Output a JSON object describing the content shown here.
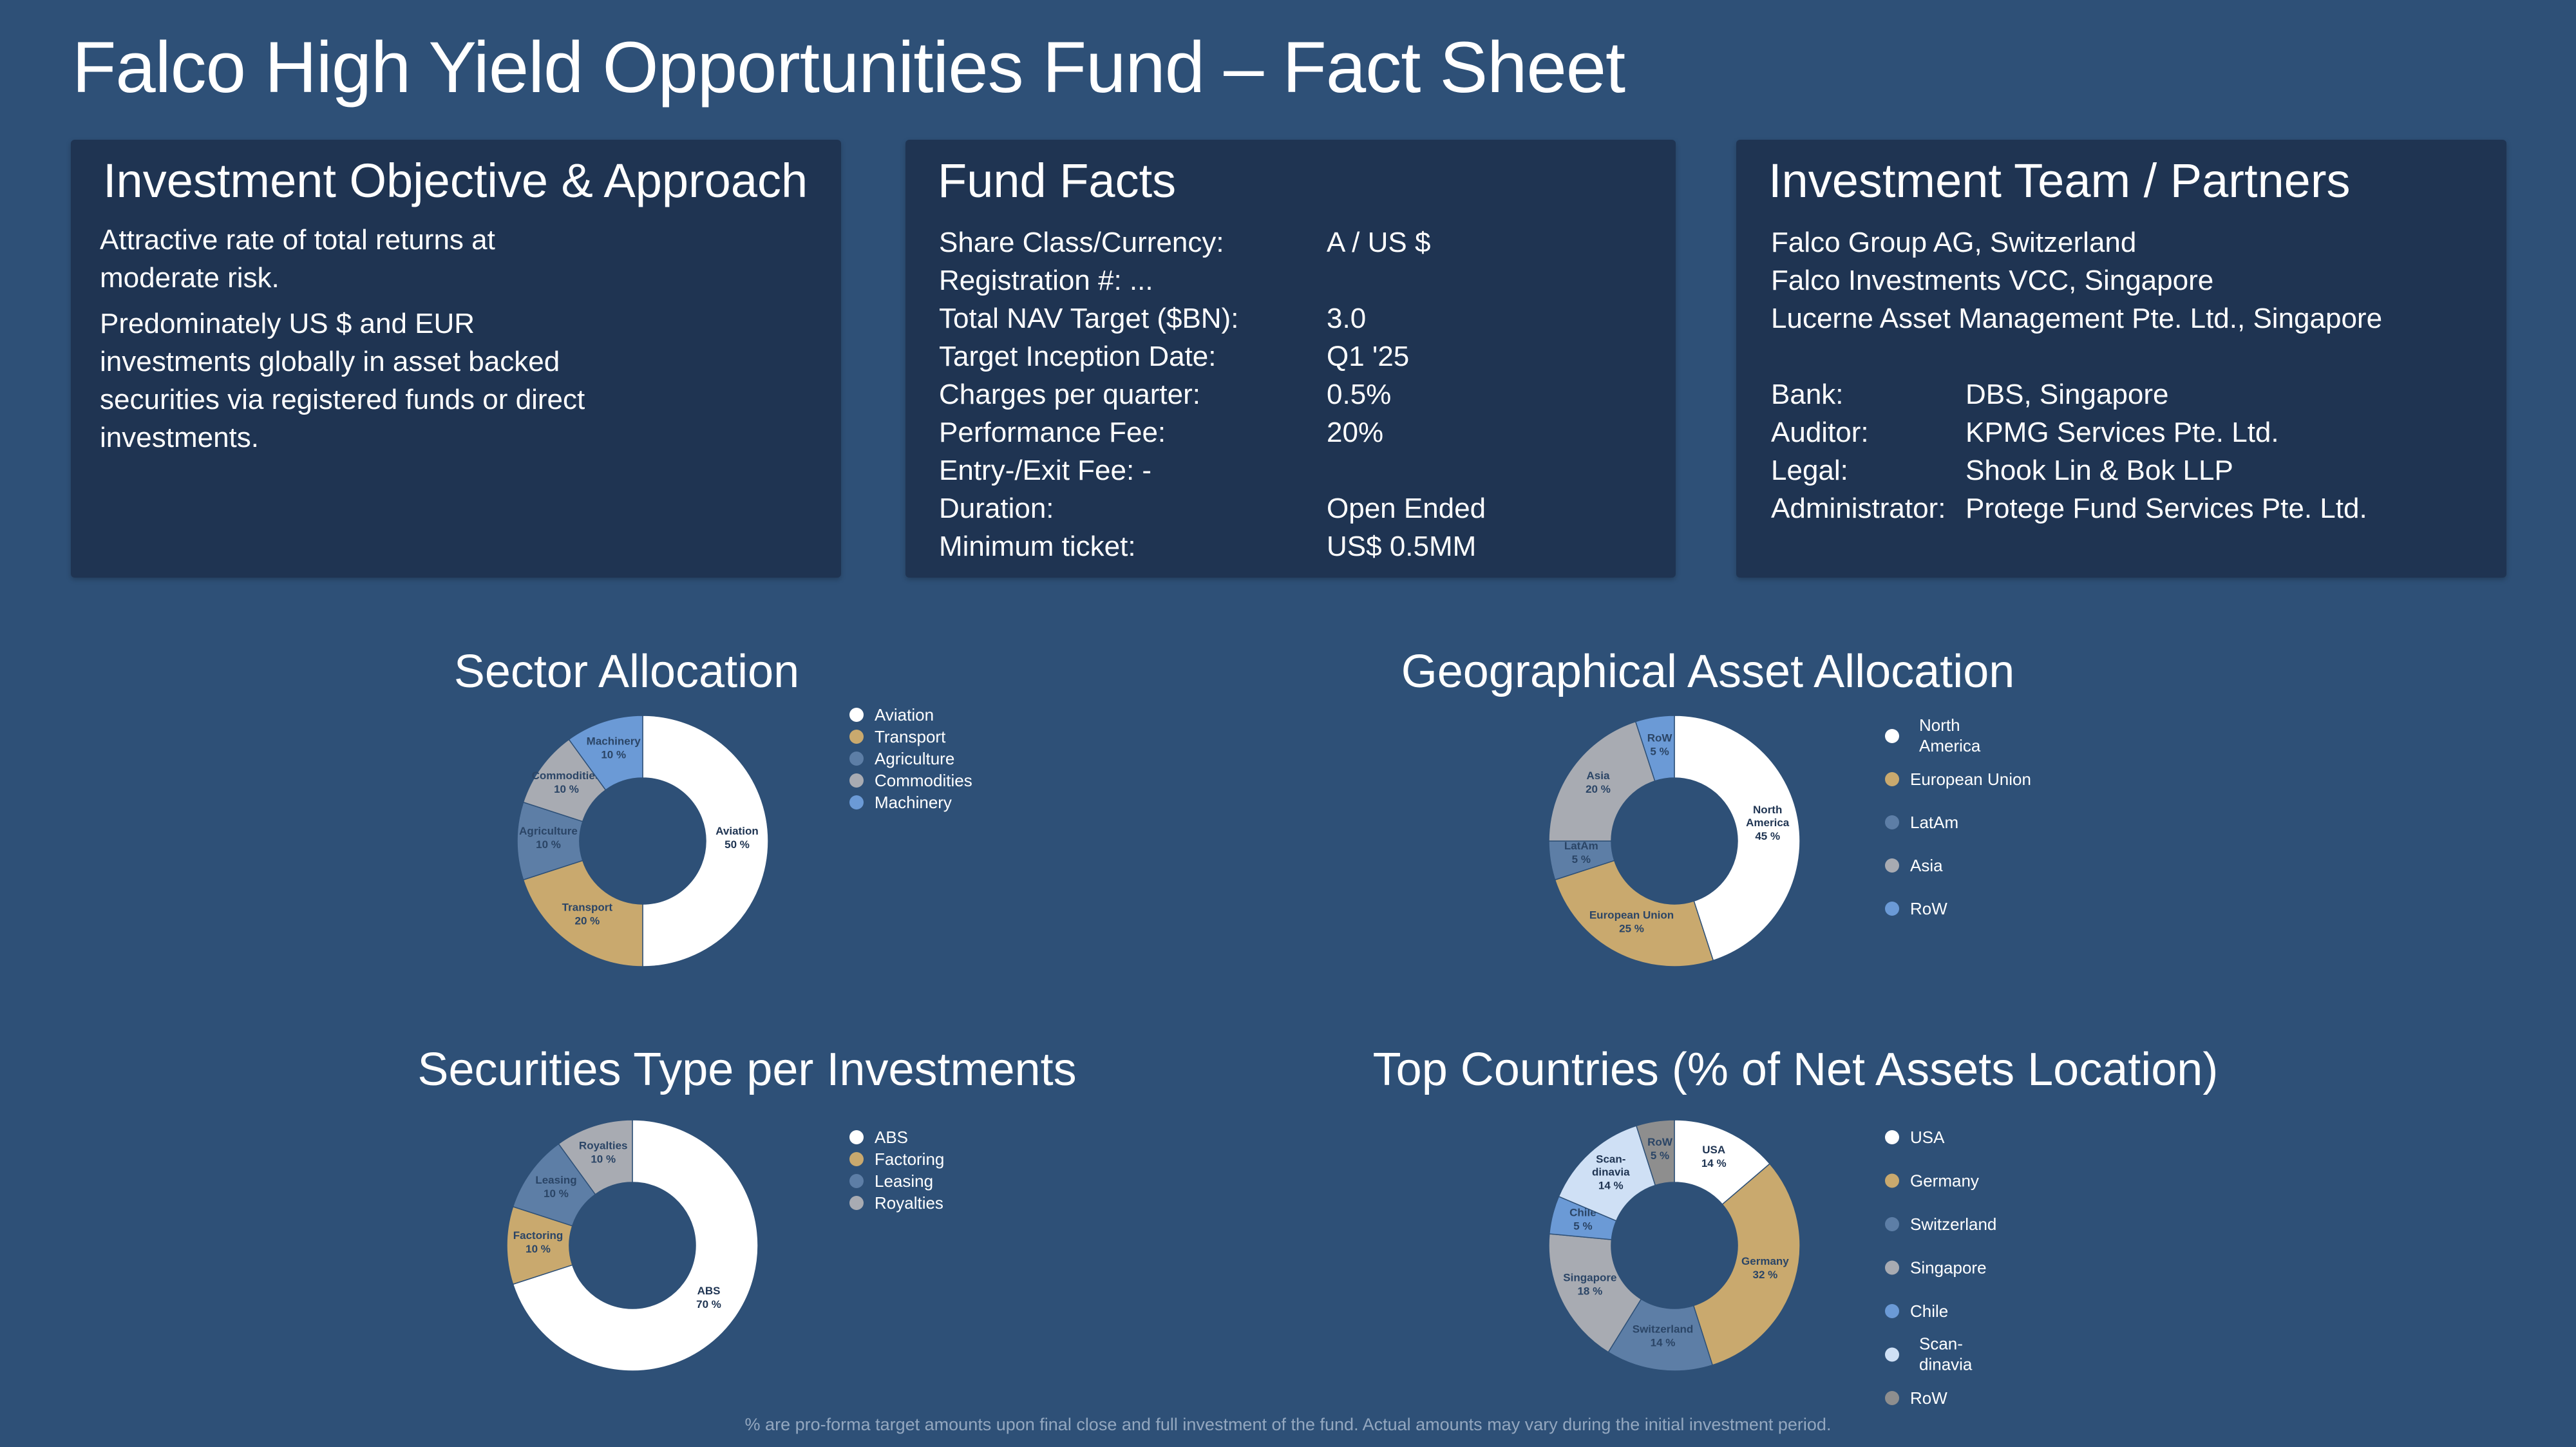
{
  "header": {
    "title": "Falco High Yield Opportunities Fund – Fact Sheet"
  },
  "objective": {
    "title": "Investment Objective & Approach",
    "paragraphs": [
      "Attractive rate of total returns at moderate risk.",
      "Predominately US $ and EUR investments globally in asset backed securities via registered funds or direct investments."
    ]
  },
  "fund_facts": {
    "title": "Fund Facts",
    "rows": [
      {
        "label": "Share Class/Currency:",
        "value": "A / US $"
      },
      {
        "label": "Registration #: ...",
        "value": ""
      },
      {
        "label": "Total NAV Target ($BN):",
        "value": "3.0"
      },
      {
        "label": "Target Inception Date:",
        "value": "Q1 '25"
      },
      {
        "label": "Charges per quarter:",
        "value": "0.5%"
      },
      {
        "label": "Performance Fee:",
        "value": "20%"
      },
      {
        "label": "Entry-/Exit Fee: -",
        "value": ""
      },
      {
        "label": "Duration:",
        "value": "Open Ended"
      },
      {
        "label": "Minimum ticket:",
        "value": "US$ 0.5MM"
      }
    ]
  },
  "team": {
    "title": "Investment Team / Partners",
    "entities": [
      "Falco Group AG, Switzerland",
      "Falco Investments VCC, Singapore",
      "Lucerne Asset Management Pte. Ltd., Singapore"
    ],
    "rows": [
      {
        "label": "Bank:",
        "value": "DBS, Singapore"
      },
      {
        "label": "Auditor:",
        "value": "KPMG Services Pte. Ltd."
      },
      {
        "label": "Legal:",
        "value": "Shook Lin & Bok LLP"
      },
      {
        "label": "Administrator:",
        "value": "Protege Fund Services Pte. Ltd."
      }
    ]
  },
  "chart_data": [
    {
      "type": "pie",
      "title": "Sector Allocation",
      "categories": [
        "Aviation",
        "Transport",
        "Agriculture",
        "Commodities",
        "Machinery"
      ],
      "values": [
        50,
        20,
        10,
        10,
        10
      ],
      "labels": [
        "50 %",
        "20 %",
        "10 %",
        "10 %",
        "10 %"
      ],
      "colors": [
        "#ffffff",
        "#c9a96e",
        "#5d7ea6",
        "#a8abb2",
        "#6b9ad6"
      ],
      "legend": "right"
    },
    {
      "type": "pie",
      "title": "Geographical Asset Allocation",
      "categories": [
        "North America",
        "European Union",
        "LatAm",
        "Asia",
        "RoW"
      ],
      "values": [
        45,
        25,
        5,
        20,
        5
      ],
      "labels": [
        "45 %",
        "25 %",
        "5 %",
        "20 %",
        "5 %"
      ],
      "colors": [
        "#ffffff",
        "#c9a96e",
        "#5d7ea6",
        "#a8abb2",
        "#6b9ad6"
      ],
      "legend": "right"
    },
    {
      "type": "pie",
      "title": "Securities Type per Investments",
      "categories": [
        "ABS",
        "Factoring",
        "Leasing",
        "Royalties"
      ],
      "values": [
        70,
        10,
        10,
        10
      ],
      "labels": [
        "70 %",
        "10 %",
        "10 %",
        "10 %"
      ],
      "colors": [
        "#ffffff",
        "#c9a96e",
        "#5d7ea6",
        "#a8abb2"
      ],
      "legend": "right"
    },
    {
      "type": "pie",
      "title": "Top Countries (% of Net Assets Location)",
      "categories": [
        "USA",
        "Germany",
        "Switzerland",
        "Singapore",
        "Chile",
        "Scan-dinavia",
        "RoW"
      ],
      "values": [
        14,
        32,
        14,
        18,
        5,
        14,
        5
      ],
      "labels": [
        "14 %",
        "32 %",
        "14 %",
        "18 %",
        "5 %",
        "14 %",
        "5 %"
      ],
      "colors": [
        "#ffffff",
        "#c9a96e",
        "#5d7ea6",
        "#a8abb2",
        "#6b9ad6",
        "#cfe0f5",
        "#8e8e8e"
      ],
      "legend": "right"
    }
  ],
  "footnote": "% are pro-forma target amounts upon final close and full investment of the fund. Actual amounts may vary during the initial investment period."
}
